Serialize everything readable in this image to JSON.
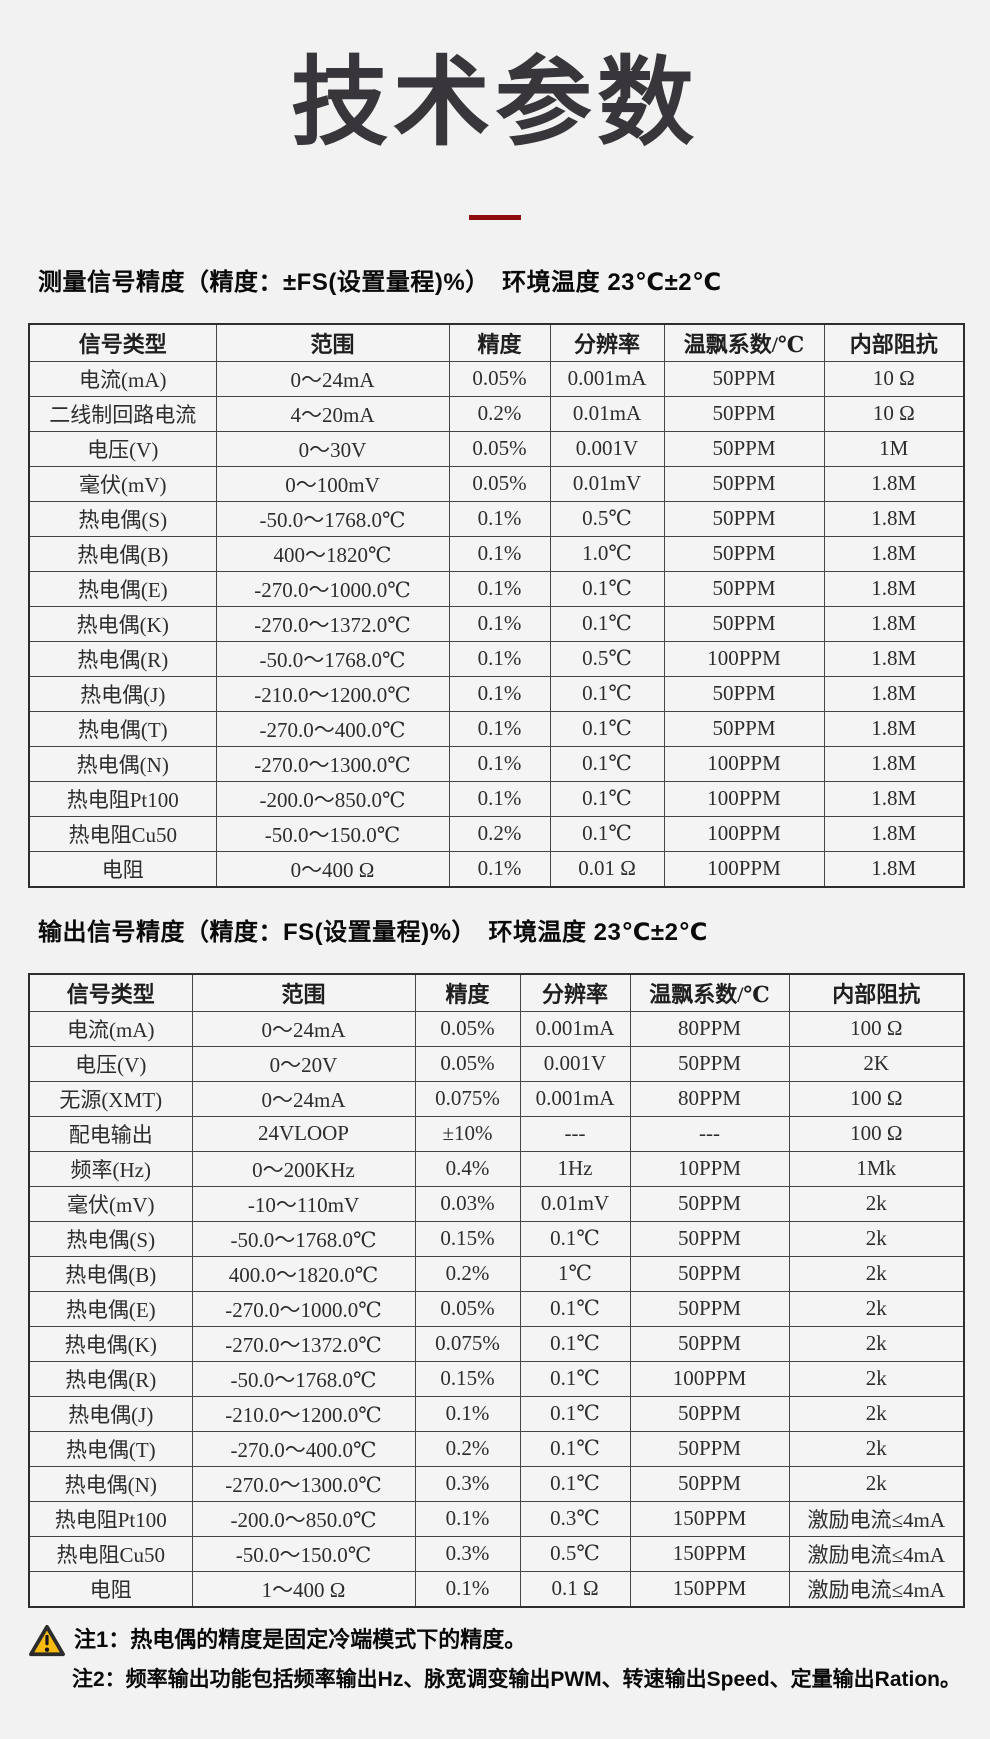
{
  "page": {
    "title": "技术参数",
    "accent_color": "#8e0c0c",
    "background_color": "#f3f2f2",
    "warning_color": "#f8ba0d"
  },
  "sections": [
    {
      "heading": "测量信号精度（精度：±FS(设置量程)%）　环境温度 23℃±2℃",
      "table": {
        "headers": [
          "信号类型",
          "范围",
          "精度",
          "分辨率",
          "温飘系数/℃",
          "内部阻抗"
        ],
        "rows": [
          [
            "电流(mA)",
            "0～24mA",
            "0.05%",
            "0.001mA",
            "50PPM",
            "10 Ω"
          ],
          [
            "二线制回路电流",
            "4～20mA",
            "0.2%",
            "0.01mA",
            "50PPM",
            "10 Ω"
          ],
          [
            "电压(V)",
            "0～30V",
            "0.05%",
            "0.001V",
            "50PPM",
            "1M"
          ],
          [
            "毫伏(mV)",
            "0～100mV",
            "0.05%",
            "0.01mV",
            "50PPM",
            "1.8M"
          ],
          [
            "热电偶(S)",
            "-50.0～1768.0℃",
            "0.1%",
            "0.5℃",
            "50PPM",
            "1.8M"
          ],
          [
            "热电偶(B)",
            "400～1820℃",
            "0.1%",
            "1.0℃",
            "50PPM",
            "1.8M"
          ],
          [
            "热电偶(E)",
            "-270.0～1000.0℃",
            "0.1%",
            "0.1℃",
            "50PPM",
            "1.8M"
          ],
          [
            "热电偶(K)",
            "-270.0～1372.0℃",
            "0.1%",
            "0.1℃",
            "50PPM",
            "1.8M"
          ],
          [
            "热电偶(R)",
            "-50.0～1768.0℃",
            "0.1%",
            "0.5℃",
            "100PPM",
            "1.8M"
          ],
          [
            "热电偶(J)",
            "-210.0～1200.0℃",
            "0.1%",
            "0.1℃",
            "50PPM",
            "1.8M"
          ],
          [
            "热电偶(T)",
            "-270.0～400.0℃",
            "0.1%",
            "0.1℃",
            "50PPM",
            "1.8M"
          ],
          [
            "热电偶(N)",
            "-270.0～1300.0℃",
            "0.1%",
            "0.1℃",
            "100PPM",
            "1.8M"
          ],
          [
            "热电阻Pt100",
            "-200.0～850.0℃",
            "0.1%",
            "0.1℃",
            "100PPM",
            "1.8M"
          ],
          [
            "热电阻Cu50",
            "-50.0～150.0℃",
            "0.2%",
            "0.1℃",
            "100PPM",
            "1.8M"
          ],
          [
            "电阻",
            "0～400 Ω",
            "0.1%",
            "0.01 Ω",
            "100PPM",
            "1.8M"
          ]
        ]
      }
    },
    {
      "heading": "输出信号精度（精度：FS(设置量程)%）　环境温度 23℃±2℃",
      "table": {
        "headers": [
          "信号类型",
          "范围",
          "精度",
          "分辨率",
          "温飘系数/℃",
          "内部阻抗"
        ],
        "rows": [
          [
            "电流(mA)",
            "0～24mA",
            "0.05%",
            "0.001mA",
            "80PPM",
            "100 Ω"
          ],
          [
            "电压(V)",
            "0～20V",
            "0.05%",
            "0.001V",
            "50PPM",
            "2K"
          ],
          [
            "无源(XMT)",
            "0～24mA",
            "0.075%",
            "0.001mA",
            "80PPM",
            "100 Ω"
          ],
          [
            "配电输出",
            "24VLOOP",
            "±10%",
            "---",
            "---",
            "100 Ω"
          ],
          [
            "频率(Hz)",
            "0～200KHz",
            "0.4%",
            "1Hz",
            "10PPM",
            "1Mk"
          ],
          [
            "毫伏(mV)",
            "-10～110mV",
            "0.03%",
            "0.01mV",
            "50PPM",
            "2k"
          ],
          [
            "热电偶(S)",
            "-50.0～1768.0℃",
            "0.15%",
            "0.1℃",
            "50PPM",
            "2k"
          ],
          [
            "热电偶(B)",
            "400.0～1820.0℃",
            "0.2%",
            "1℃",
            "50PPM",
            "2k"
          ],
          [
            "热电偶(E)",
            "-270.0～1000.0℃",
            "0.05%",
            "0.1℃",
            "50PPM",
            "2k"
          ],
          [
            "热电偶(K)",
            "-270.0～1372.0℃",
            "0.075%",
            "0.1℃",
            "50PPM",
            "2k"
          ],
          [
            "热电偶(R)",
            "-50.0～1768.0℃",
            "0.15%",
            "0.1℃",
            "100PPM",
            "2k"
          ],
          [
            "热电偶(J)",
            "-210.0～1200.0℃",
            "0.1%",
            "0.1℃",
            "50PPM",
            "2k"
          ],
          [
            "热电偶(T)",
            "-270.0～400.0℃",
            "0.2%",
            "0.1℃",
            "50PPM",
            "2k"
          ],
          [
            "热电偶(N)",
            "-270.0～1300.0℃",
            "0.3%",
            "0.1℃",
            "50PPM",
            "2k"
          ],
          [
            "热电阻Pt100",
            "-200.0～850.0℃",
            "0.1%",
            "0.3℃",
            "150PPM",
            "激励电流≤4mA"
          ],
          [
            "热电阻Cu50",
            "-50.0～150.0℃",
            "0.3%",
            "0.5℃",
            "150PPM",
            "激励电流≤4mA"
          ],
          [
            "电阻",
            "1～400 Ω",
            "0.1%",
            "0.1 Ω",
            "150PPM",
            "激励电流≤4mA"
          ]
        ]
      }
    }
  ],
  "notes": {
    "warning_icon": "warning-triangle",
    "items": [
      "注1：热电偶的精度是固定冷端模式下的精度。",
      "注2：频率输出功能包括频率输出Hz、脉宽调变输出PWM、转速输出Speed、定量输出Ration。"
    ]
  }
}
